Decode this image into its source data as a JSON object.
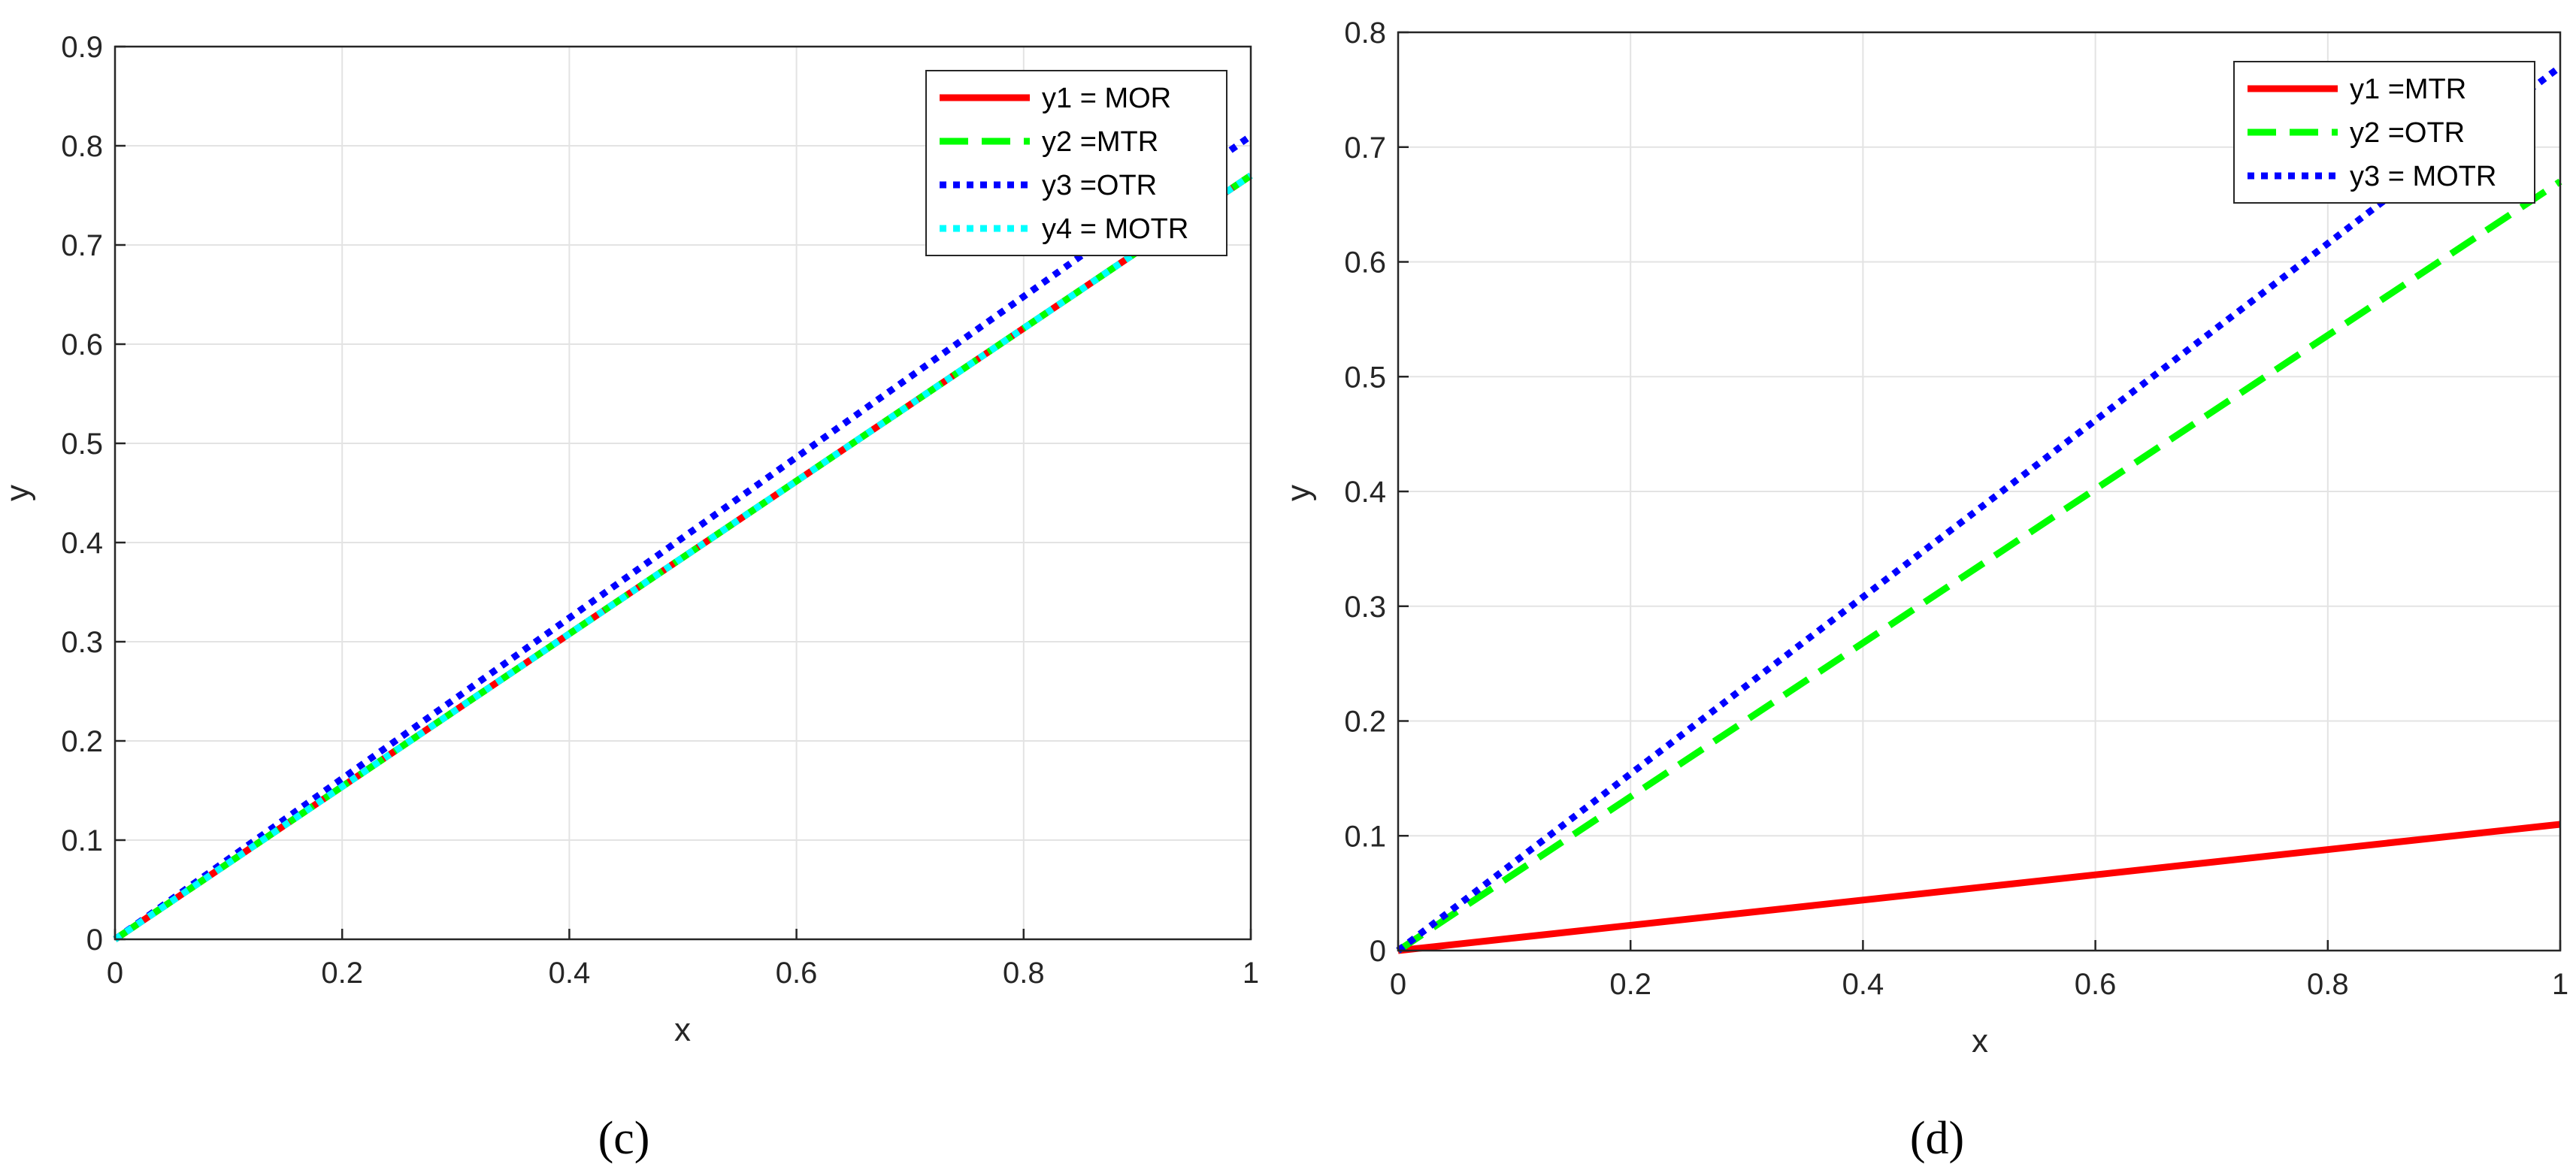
{
  "charts": [
    {
      "panel_label": "(c)",
      "chart_data": {
        "type": "line",
        "title": "",
        "xlabel": "x",
        "ylabel": "y",
        "xlim": [
          0,
          1
        ],
        "ylim": [
          0,
          0.9
        ],
        "x_ticks": [
          0,
          0.2,
          0.4,
          0.6,
          0.8,
          1
        ],
        "x_tick_labels": [
          "0",
          "0.2",
          "0.4",
          "0.6",
          "0.8",
          "1"
        ],
        "y_ticks": [
          0,
          0.1,
          0.2,
          0.3,
          0.4,
          0.5,
          0.6,
          0.7,
          0.8,
          0.9
        ],
        "y_tick_labels": [
          "0",
          "0.1",
          "0.2",
          "0.3",
          "0.4",
          "0.5",
          "0.6",
          "0.7",
          "0.8",
          "0.9"
        ],
        "grid": true,
        "legend_position": "top-right",
        "x": [
          0,
          1
        ],
        "series": [
          {
            "name": "y1 = MOR",
            "values": [
              0,
              0.77
            ],
            "color": "#ff0000",
            "style": "solid"
          },
          {
            "name": "y2 =MTR",
            "values": [
              0,
              0.77
            ],
            "color": "#00ff00",
            "style": "dashed"
          },
          {
            "name": "y3 =OTR",
            "values": [
              0,
              0.81
            ],
            "color": "#0000ff",
            "style": "dotted"
          },
          {
            "name": "y4 = MOTR",
            "values": [
              0,
              0.77
            ],
            "color": "#00ffff",
            "style": "dotted"
          }
        ]
      }
    },
    {
      "panel_label": "(d)",
      "chart_data": {
        "type": "line",
        "title": "",
        "xlabel": "x",
        "ylabel": "y",
        "xlim": [
          0,
          1
        ],
        "ylim": [
          0,
          0.8
        ],
        "x_ticks": [
          0,
          0.2,
          0.4,
          0.6,
          0.8,
          1
        ],
        "x_tick_labels": [
          "0",
          "0.2",
          "0.4",
          "0.6",
          "0.8",
          "1"
        ],
        "y_ticks": [
          0,
          0.1,
          0.2,
          0.3,
          0.4,
          0.5,
          0.6,
          0.7,
          0.8
        ],
        "y_tick_labels": [
          "0",
          "0.1",
          "0.2",
          "0.3",
          "0.4",
          "0.5",
          "0.6",
          "0.7",
          "0.8"
        ],
        "grid": true,
        "legend_position": "top-right",
        "x": [
          0,
          1
        ],
        "series": [
          {
            "name": "y1 =MTR",
            "values": [
              0,
              0.11
            ],
            "color": "#ff0000",
            "style": "solid"
          },
          {
            "name": "y2 =OTR",
            "values": [
              0,
              0.67
            ],
            "color": "#00ff00",
            "style": "dashed"
          },
          {
            "name": "y3 = MOTR",
            "values": [
              0,
              0.77
            ],
            "color": "#0000ff",
            "style": "dotted"
          }
        ]
      }
    }
  ]
}
